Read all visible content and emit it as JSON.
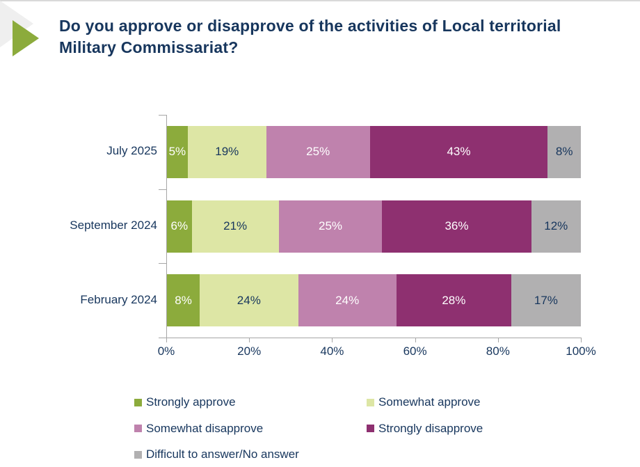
{
  "title": "Do you approve or disapprove of the activities of Local territorial Military Commissariat?",
  "colors": {
    "navy_text": "#17365d",
    "accent_green": "#8cab3c",
    "axis_gray": "#a6a6a6",
    "decoration_gray": "#efefef",
    "white": "#ffffff"
  },
  "chart_data": {
    "type": "bar",
    "stacked": true,
    "orientation": "horizontal",
    "title": "Do you approve or disapprove of the activities of Local territorial Military Commissariat?",
    "categories": [
      "July 2025",
      "September 2024",
      "February 2024"
    ],
    "series": [
      {
        "name": "Strongly approve",
        "color": "#8cab3c",
        "label_color": "#ffffff",
        "values": [
          5,
          6,
          8
        ]
      },
      {
        "name": "Somewhat approve",
        "color": "#dde6a5",
        "label_color": "#17365d",
        "values": [
          19,
          21,
          24
        ]
      },
      {
        "name": "Somewhat disapprove",
        "color": "#bf82ad",
        "label_color": "#ffffff",
        "values": [
          25,
          25,
          24
        ]
      },
      {
        "name": "Strongly disapprove",
        "color": "#8e3070",
        "label_color": "#ffffff",
        "values": [
          43,
          36,
          28
        ]
      },
      {
        "name": "Difficult to answer/No answer",
        "color": "#b1b0b1",
        "label_color": "#17365d",
        "values": [
          8,
          12,
          17
        ]
      }
    ],
    "value_suffix": "%",
    "x_tick_labels": [
      "0%",
      "20%",
      "40%",
      "60%",
      "80%",
      "100%"
    ],
    "xlim": [
      0,
      100
    ],
    "grid": false,
    "legend_position": "bottom"
  }
}
